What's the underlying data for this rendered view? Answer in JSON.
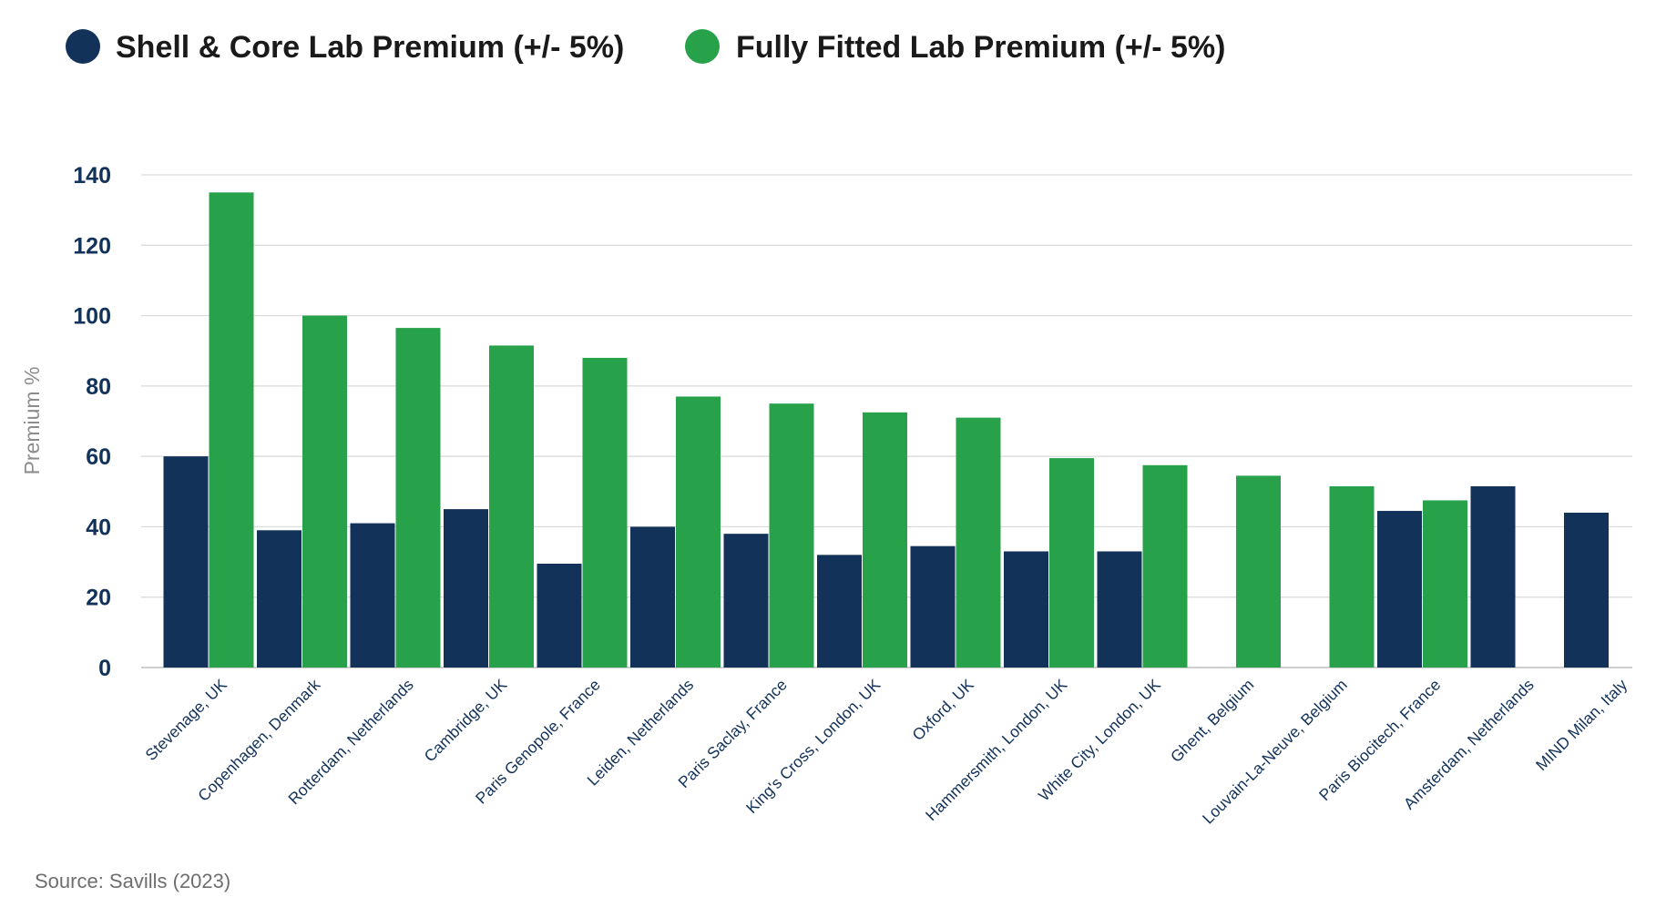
{
  "chart_data": {
    "type": "bar",
    "ylabel": "Premium %",
    "ylim": [
      0,
      140
    ],
    "yticks": [
      0,
      20,
      40,
      60,
      80,
      100,
      120,
      140
    ],
    "grid": true,
    "legend_position": "top-left",
    "categories": [
      "Stevenage, UK",
      "Copenhagen, Denmark",
      "Rotterdam, Netherlands",
      "Cambridge, UK",
      "Paris Genopole, France",
      "Leiden, Netherlands",
      "Paris Saclay, France",
      "King's Cross, London, UK",
      "Oxford, UK",
      "Hammersmith, London, UK",
      "White City, London, UK",
      "Ghent, Belgium",
      "Louvain-La-Neuve, Belgium",
      "Paris Biocitech, France",
      "Amsterdam, Netherlands",
      "MIND Milan, Italy"
    ],
    "series": [
      {
        "name": "Shell & Core Lab Premium (+/- 5%)",
        "color": "#12325a",
        "values": [
          60,
          39,
          41,
          45,
          29.5,
          40,
          38,
          32,
          34.5,
          33,
          33,
          null,
          null,
          44.5,
          51.5,
          44
        ]
      },
      {
        "name": "Fully Fitted Lab Premium (+/- 5%)",
        "color": "#28a24a",
        "values": [
          135,
          100,
          96.5,
          91.5,
          88,
          77,
          75,
          72.5,
          71,
          59.5,
          57.5,
          54.5,
          51.5,
          47.5,
          null,
          null
        ]
      }
    ]
  },
  "source": "Source: Savills (2023)"
}
